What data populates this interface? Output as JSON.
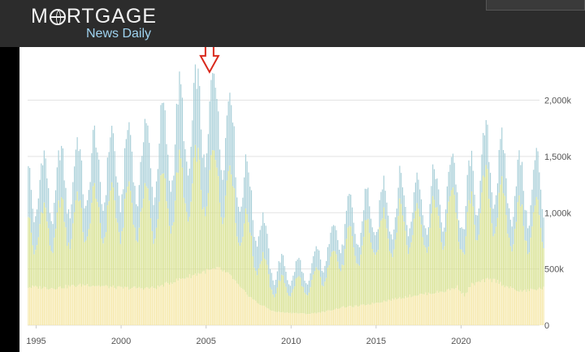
{
  "header": {
    "logo_top_left": "M",
    "logo_top_right": "RTGAGE",
    "logo_bottom": "News Daily"
  },
  "chart_data": {
    "type": "bar",
    "stacked": true,
    "xlim": [
      1994.5,
      2024.9
    ],
    "ylim": [
      0,
      2400
    ],
    "ylabel": "",
    "xlabel": "",
    "x_ticks": [
      "1995",
      "2000",
      "2005",
      "2010",
      "2015",
      "2020"
    ],
    "y_ticks": [
      {
        "label": "0",
        "value": 0
      },
      {
        "label": "500k",
        "value": 500
      },
      {
        "label": "1,000k",
        "value": 1000
      },
      {
        "label": "1,500k",
        "value": 1500
      },
      {
        "label": "2,000k",
        "value": 2000
      }
    ],
    "annotation": {
      "label": "down-arrow",
      "x": 2005.2,
      "y": 2250
    },
    "gridlines": true,
    "legend": "none",
    "series_colors": [
      "#f5e6a2",
      "#d6e08c",
      "#a8cfd8"
    ],
    "series_keypoints": {
      "total": [
        [
          1994.5,
          1400
        ],
        [
          1996,
          1400
        ],
        [
          1998,
          1550
        ],
        [
          2000,
          1600
        ],
        [
          2002,
          1700
        ],
        [
          2003.5,
          1950
        ],
        [
          2005,
          2100
        ],
        [
          2005.8,
          2150
        ],
        [
          2006.5,
          1900
        ],
        [
          2007,
          1500
        ],
        [
          2008,
          1100
        ],
        [
          2009,
          550
        ],
        [
          2010,
          550
        ],
        [
          2011,
          520
        ],
        [
          2012,
          750
        ],
        [
          2013,
          1000
        ],
        [
          2014,
          1050
        ],
        [
          2015,
          1150
        ],
        [
          2016,
          1200
        ],
        [
          2017,
          1250
        ],
        [
          2018,
          1250
        ],
        [
          2019,
          1300
        ],
        [
          2019.8,
          1500
        ],
        [
          2020.2,
          950
        ],
        [
          2020.6,
          1500
        ],
        [
          2021.5,
          1600
        ],
        [
          2022,
          1650
        ],
        [
          2022.7,
          1400
        ],
        [
          2023.5,
          1350
        ],
        [
          2024.9,
          1400
        ]
      ],
      "middle": [
        [
          1994.5,
          950
        ],
        [
          1996,
          1000
        ],
        [
          1998,
          1100
        ],
        [
          2000,
          1150
        ],
        [
          2002,
          1150
        ],
        [
          2003.5,
          1350
        ],
        [
          2005,
          1450
        ],
        [
          2005.8,
          1500
        ],
        [
          2006.5,
          1300
        ],
        [
          2007,
          1050
        ],
        [
          2008,
          700
        ],
        [
          2009,
          380
        ],
        [
          2010,
          400
        ],
        [
          2011,
          380
        ],
        [
          2012,
          550
        ],
        [
          2013,
          750
        ],
        [
          2014,
          800
        ],
        [
          2015,
          900
        ],
        [
          2016,
          950
        ],
        [
          2017,
          1000
        ],
        [
          2018,
          1000
        ],
        [
          2019,
          1050
        ],
        [
          2019.8,
          1200
        ],
        [
          2020.2,
          700
        ],
        [
          2020.6,
          1150
        ],
        [
          2021.5,
          1250
        ],
        [
          2022,
          1250
        ],
        [
          2022.7,
          1050
        ],
        [
          2023.5,
          1000
        ],
        [
          2024.9,
          1000
        ]
      ],
      "bottom": [
        [
          1994.5,
          340
        ],
        [
          1996,
          330
        ],
        [
          1998,
          360
        ],
        [
          2000,
          330
        ],
        [
          2002,
          330
        ],
        [
          2003.5,
          410
        ],
        [
          2005,
          480
        ],
        [
          2005.8,
          500
        ],
        [
          2006.5,
          430
        ],
        [
          2007,
          330
        ],
        [
          2008,
          200
        ],
        [
          2009,
          120
        ],
        [
          2010,
          110
        ],
        [
          2011,
          100
        ],
        [
          2012,
          120
        ],
        [
          2013,
          160
        ],
        [
          2014,
          170
        ],
        [
          2015,
          200
        ],
        [
          2016,
          230
        ],
        [
          2017,
          260
        ],
        [
          2018,
          280
        ],
        [
          2019,
          300
        ],
        [
          2019.8,
          340
        ],
        [
          2020.2,
          260
        ],
        [
          2020.6,
          360
        ],
        [
          2021.5,
          400
        ],
        [
          2022,
          400
        ],
        [
          2022.7,
          340
        ],
        [
          2023.5,
          300
        ],
        [
          2024.9,
          330
        ]
      ]
    },
    "month_count": 359
  }
}
